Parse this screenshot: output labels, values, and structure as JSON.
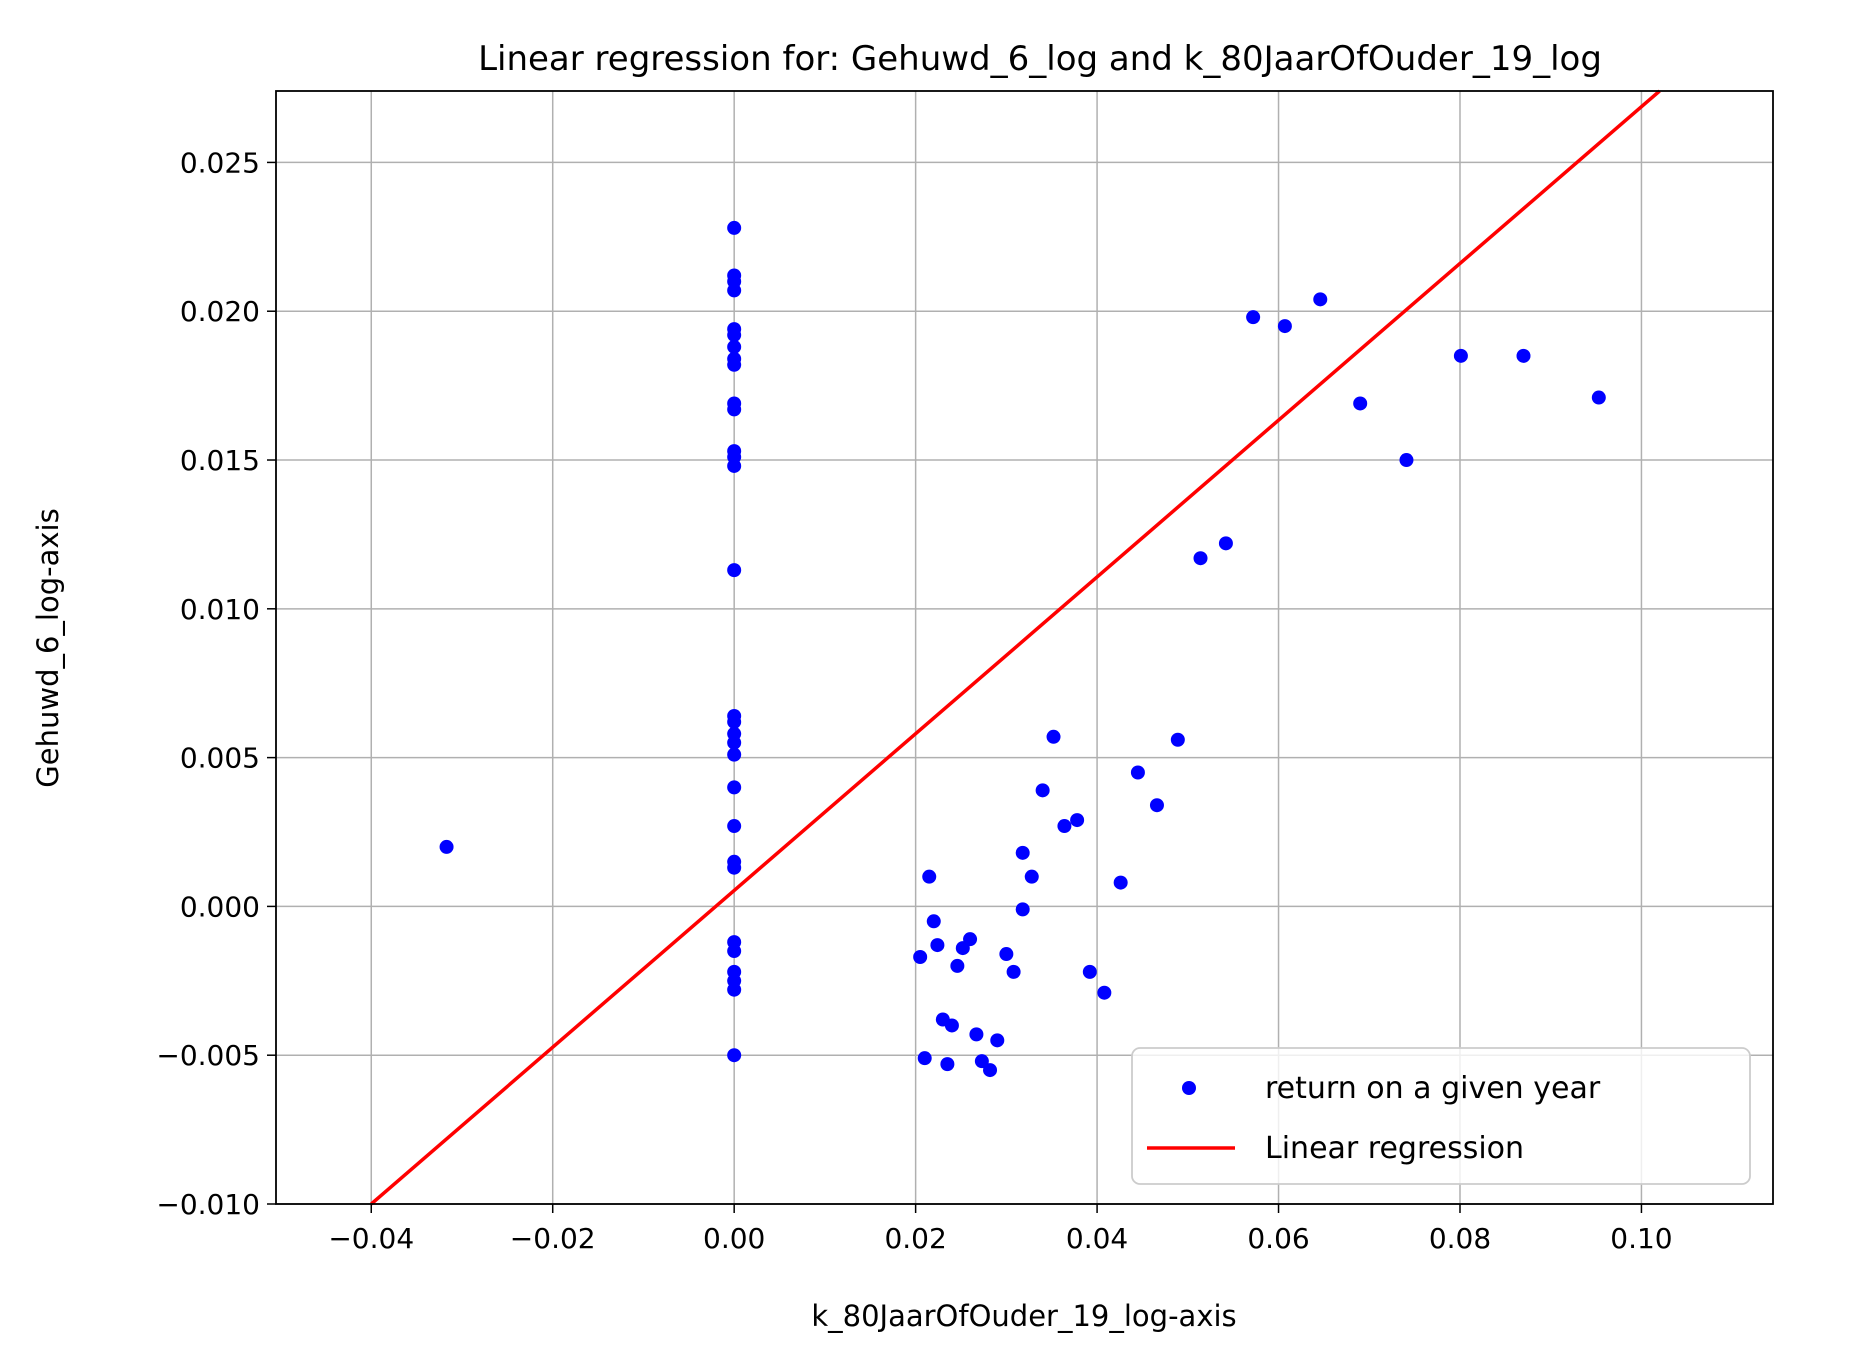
{
  "chart_data": {
    "type": "scatter",
    "title": "Linear regression for: Gehuwd_6_log and k_80JaarOfOuder_19_log",
    "xlabel": "k_80JaarOfOuder_19_log-axis",
    "ylabel": "Gehuwd_6_log-axis",
    "xlim": [
      -0.0505,
      0.1145
    ],
    "ylim": [
      -0.01,
      0.0274
    ],
    "xticks": [
      -0.04,
      -0.02,
      0.0,
      0.02,
      0.04,
      0.06,
      0.08,
      0.1
    ],
    "xtick_labels": [
      "−0.04",
      "−0.02",
      "0.00",
      "0.02",
      "0.04",
      "0.06",
      "0.08",
      "0.10"
    ],
    "yticks": [
      -0.01,
      -0.005,
      0.0,
      0.005,
      0.01,
      0.015,
      0.02,
      0.025
    ],
    "ytick_labels": [
      "−0.010",
      "−0.005",
      "0.000",
      "0.005",
      "0.010",
      "0.015",
      "0.020",
      "0.025"
    ],
    "grid": true,
    "legend_position": "lower-right",
    "colors": {
      "points": "#0000ff",
      "line": "#ff0000"
    },
    "series": [
      {
        "name": "return on a given year",
        "type": "scatter",
        "points": [
          [
            0.0,
            0.0228
          ],
          [
            0.0,
            0.0212
          ],
          [
            0.0,
            0.021
          ],
          [
            0.0,
            0.0207
          ],
          [
            0.0,
            0.0194
          ],
          [
            0.0,
            0.0192
          ],
          [
            0.0,
            0.0188
          ],
          [
            0.0,
            0.0184
          ],
          [
            0.0,
            0.0182
          ],
          [
            0.0,
            0.0169
          ],
          [
            0.0,
            0.0167
          ],
          [
            0.0,
            0.0153
          ],
          [
            0.0,
            0.0151
          ],
          [
            0.0,
            0.0148
          ],
          [
            0.0,
            0.0113
          ],
          [
            0.0,
            0.0064
          ],
          [
            0.0,
            0.0062
          ],
          [
            0.0,
            0.0058
          ],
          [
            0.0,
            0.0055
          ],
          [
            0.0,
            0.0051
          ],
          [
            0.0,
            0.004
          ],
          [
            0.0,
            0.0027
          ],
          [
            0.0,
            0.0015
          ],
          [
            0.0,
            0.0013
          ],
          [
            0.0,
            -0.0012
          ],
          [
            0.0,
            -0.0015
          ],
          [
            0.0,
            -0.0022
          ],
          [
            0.0,
            -0.0025
          ],
          [
            0.0,
            -0.0028
          ],
          [
            0.0,
            -0.005
          ],
          [
            -0.0317,
            0.002
          ],
          [
            0.0205,
            -0.0017
          ],
          [
            0.021,
            -0.0051
          ],
          [
            0.0215,
            0.001
          ],
          [
            0.022,
            -0.0005
          ],
          [
            0.0224,
            -0.0013
          ],
          [
            0.023,
            -0.0038
          ],
          [
            0.0235,
            -0.0053
          ],
          [
            0.024,
            -0.004
          ],
          [
            0.0246,
            -0.002
          ],
          [
            0.0252,
            -0.0014
          ],
          [
            0.026,
            -0.0011
          ],
          [
            0.0267,
            -0.0043
          ],
          [
            0.0273,
            -0.0052
          ],
          [
            0.0282,
            -0.0055
          ],
          [
            0.029,
            -0.0045
          ],
          [
            0.03,
            -0.0016
          ],
          [
            0.0308,
            -0.0022
          ],
          [
            0.0318,
            0.0018
          ],
          [
            0.0318,
            -0.0001
          ],
          [
            0.0328,
            0.001
          ],
          [
            0.034,
            0.0039
          ],
          [
            0.0352,
            0.0057
          ],
          [
            0.0364,
            0.0027
          ],
          [
            0.0378,
            0.0029
          ],
          [
            0.0392,
            -0.0022
          ],
          [
            0.0408,
            -0.0029
          ],
          [
            0.0426,
            0.0008
          ],
          [
            0.0445,
            0.0045
          ],
          [
            0.0466,
            0.0034
          ],
          [
            0.0489,
            0.0056
          ],
          [
            0.0514,
            0.0117
          ],
          [
            0.0542,
            0.0122
          ],
          [
            0.0572,
            0.0198
          ],
          [
            0.0607,
            0.0195
          ],
          [
            0.0646,
            0.0204
          ],
          [
            0.069,
            0.0169
          ],
          [
            0.0741,
            0.015
          ],
          [
            0.0801,
            0.0185
          ],
          [
            0.087,
            0.0185
          ],
          [
            0.0953,
            0.0171
          ]
        ]
      },
      {
        "name": "Linear regression",
        "type": "line",
        "points": [
          [
            -0.04,
            -0.01
          ],
          [
            0.102,
            0.0274
          ]
        ]
      }
    ]
  }
}
